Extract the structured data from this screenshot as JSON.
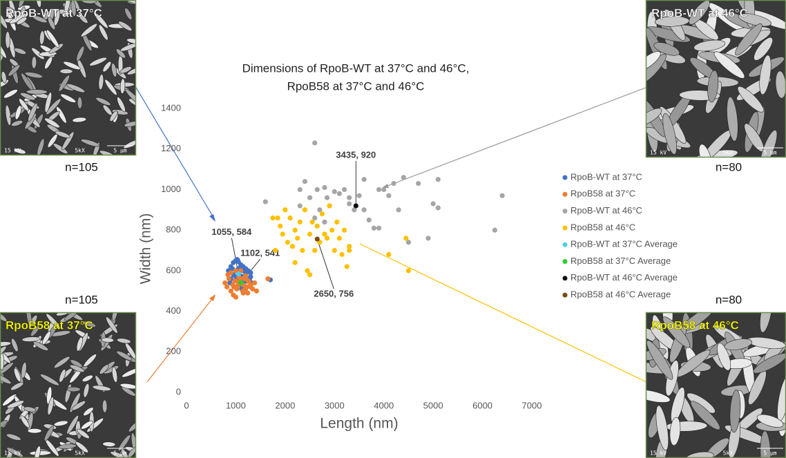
{
  "chart_data": {
    "type": "scatter",
    "title": [
      "Dimensions of RpoB-WT at 37°C and 46°C,",
      "RpoB58 at 37°C and 46°C"
    ],
    "x_label": "Length (nm)",
    "y_label": "Width (nm)",
    "xlim": [
      0,
      7000
    ],
    "xticks": [
      0,
      1000,
      2000,
      3000,
      4000,
      5000,
      6000,
      7000
    ],
    "ylim": [
      0,
      1400
    ],
    "yticks": [
      0,
      200,
      400,
      600,
      800,
      1000,
      1200,
      1400
    ],
    "grid": false,
    "legend": "right",
    "series": [
      {
        "name": "RpoB-WT at 37°C",
        "color": "#4472c4",
        "x": [
          850,
          900,
          950,
          1000,
          1050,
          1100,
          1150,
          1200,
          1250,
          1300,
          950,
          1000,
          1050,
          1100,
          1150,
          1200,
          900,
          1000,
          1100,
          1200,
          1300,
          1050,
          1150,
          880,
          980,
          1080,
          1180,
          1280,
          1020,
          1120,
          1220,
          1320,
          1700,
          930,
          1030
        ],
        "values": [
          600,
          620,
          640,
          650,
          645,
          630,
          620,
          610,
          600,
          590,
          580,
          600,
          610,
          620,
          600,
          590,
          560,
          570,
          575,
          580,
          570,
          560,
          550,
          540,
          550,
          530,
          545,
          560,
          520,
          510,
          520,
          540,
          555,
          610,
          655
        ]
      },
      {
        "name": "RpoB58 at 37°C",
        "color": "#ed7d31",
        "x": [
          780,
          820,
          860,
          900,
          940,
          980,
          1020,
          1060,
          1100,
          1140,
          1180,
          1220,
          1260,
          1300,
          1340,
          1380,
          1420,
          900,
          950,
          1000,
          1050,
          1100,
          1150,
          1200,
          1250,
          1300,
          1000,
          1100,
          1200,
          1050,
          1150,
          1650,
          960,
          1240,
          840
        ],
        "values": [
          540,
          520,
          560,
          500,
          530,
          550,
          510,
          570,
          540,
          500,
          560,
          520,
          545,
          530,
          510,
          540,
          500,
          590,
          480,
          600,
          530,
          560,
          490,
          575,
          550,
          520,
          470,
          600,
          510,
          545,
          530,
          560,
          520,
          490,
          580
        ]
      },
      {
        "name": "RpoB-WT at 46°C",
        "color": "#a5a5a5",
        "x": [
          1600,
          2100,
          2300,
          2400,
          2500,
          2600,
          2650,
          2700,
          2800,
          2850,
          2900,
          3000,
          3100,
          3200,
          3300,
          3400,
          3500,
          3600,
          3700,
          3800,
          3900,
          4000,
          4100,
          4200,
          4300,
          4400,
          4500,
          4700,
          5000,
          5100,
          5100,
          6250,
          6400,
          2600,
          3300,
          2300,
          2800,
          3600,
          3900,
          4900
        ],
        "values": [
          940,
          860,
          1000,
          1040,
          960,
          1230,
          1000,
          900,
          1010,
          960,
          920,
          990,
          980,
          1000,
          930,
          900,
          970,
          900,
          850,
          810,
          810,
          1000,
          970,
          1030,
          900,
          1060,
          740,
          1030,
          930,
          1050,
          910,
          800,
          970,
          860,
          960,
          920,
          840,
          1050,
          1000,
          760
        ]
      },
      {
        "name": "RpoB58 at 46°C",
        "color": "#ffc000",
        "x": [
          1750,
          1800,
          1900,
          1950,
          2000,
          2050,
          2100,
          2150,
          2200,
          2250,
          2300,
          2350,
          2400,
          2450,
          2500,
          2550,
          2600,
          2650,
          2700,
          2750,
          2800,
          2850,
          2900,
          2950,
          3000,
          3050,
          3100,
          3150,
          3200,
          3250,
          3300,
          1850,
          2200,
          2500,
          2800,
          3300,
          4100,
          4450,
          4500,
          2400,
          2700
        ],
        "values": [
          860,
          700,
          820,
          780,
          900,
          740,
          860,
          720,
          800,
          760,
          840,
          700,
          900,
          600,
          780,
          840,
          700,
          820,
          740,
          880,
          780,
          760,
          920,
          800,
          700,
          840,
          760,
          680,
          800,
          620,
          720,
          860,
          640,
          580,
          780,
          700,
          680,
          760,
          600,
          900,
          740
        ]
      },
      {
        "name": "RpoB-WT at 37°C Average",
        "color": "#4fd0e6",
        "x": [
          1055
        ],
        "values": [
          584
        ]
      },
      {
        "name": "RpoB58 at 37°C Average",
        "color": "#2ecc2e",
        "x": [
          1102
        ],
        "values": [
          541
        ]
      },
      {
        "name": "RpoB-WT at 46°C Average",
        "color": "#111111",
        "x": [
          3435
        ],
        "values": [
          920
        ]
      },
      {
        "name": "RpoB58 at 46°C Average",
        "color": "#7a4a10",
        "x": [
          2650
        ],
        "values": [
          756
        ]
      }
    ],
    "annotations": [
      {
        "text": "1055, 584",
        "x": 1055,
        "y": 584
      },
      {
        "text": "1102, 541",
        "x": 1102,
        "y": 541
      },
      {
        "text": "2650, 756",
        "x": 2650,
        "y": 756
      },
      {
        "text": "3435, 920",
        "x": 3435,
        "y": 920
      }
    ]
  },
  "panels": [
    {
      "title": "RpoB-WT at 37°C",
      "title_color": "#ffffff",
      "n": "n=105",
      "voltage": "15 kV",
      "magnification": "5kX",
      "scale": "5 µm"
    },
    {
      "title": "RpoB58 at 37°C",
      "title_color": "#ffff00",
      "n": "n=105",
      "voltage": "15 kV",
      "magnification": "5kX",
      "scale": "5 µm"
    },
    {
      "title": "RpoB-WT at 46°C",
      "title_color": "#ffffff",
      "n": "n=80",
      "voltage": "15 kV",
      "magnification": "5kX",
      "scale": "5 µm"
    },
    {
      "title": "RpoB58 at 46°C",
      "title_color": "#ffff00",
      "n": "n=80",
      "voltage": "15 kV",
      "magnification": "5kX",
      "scale": "5 µm"
    }
  ]
}
